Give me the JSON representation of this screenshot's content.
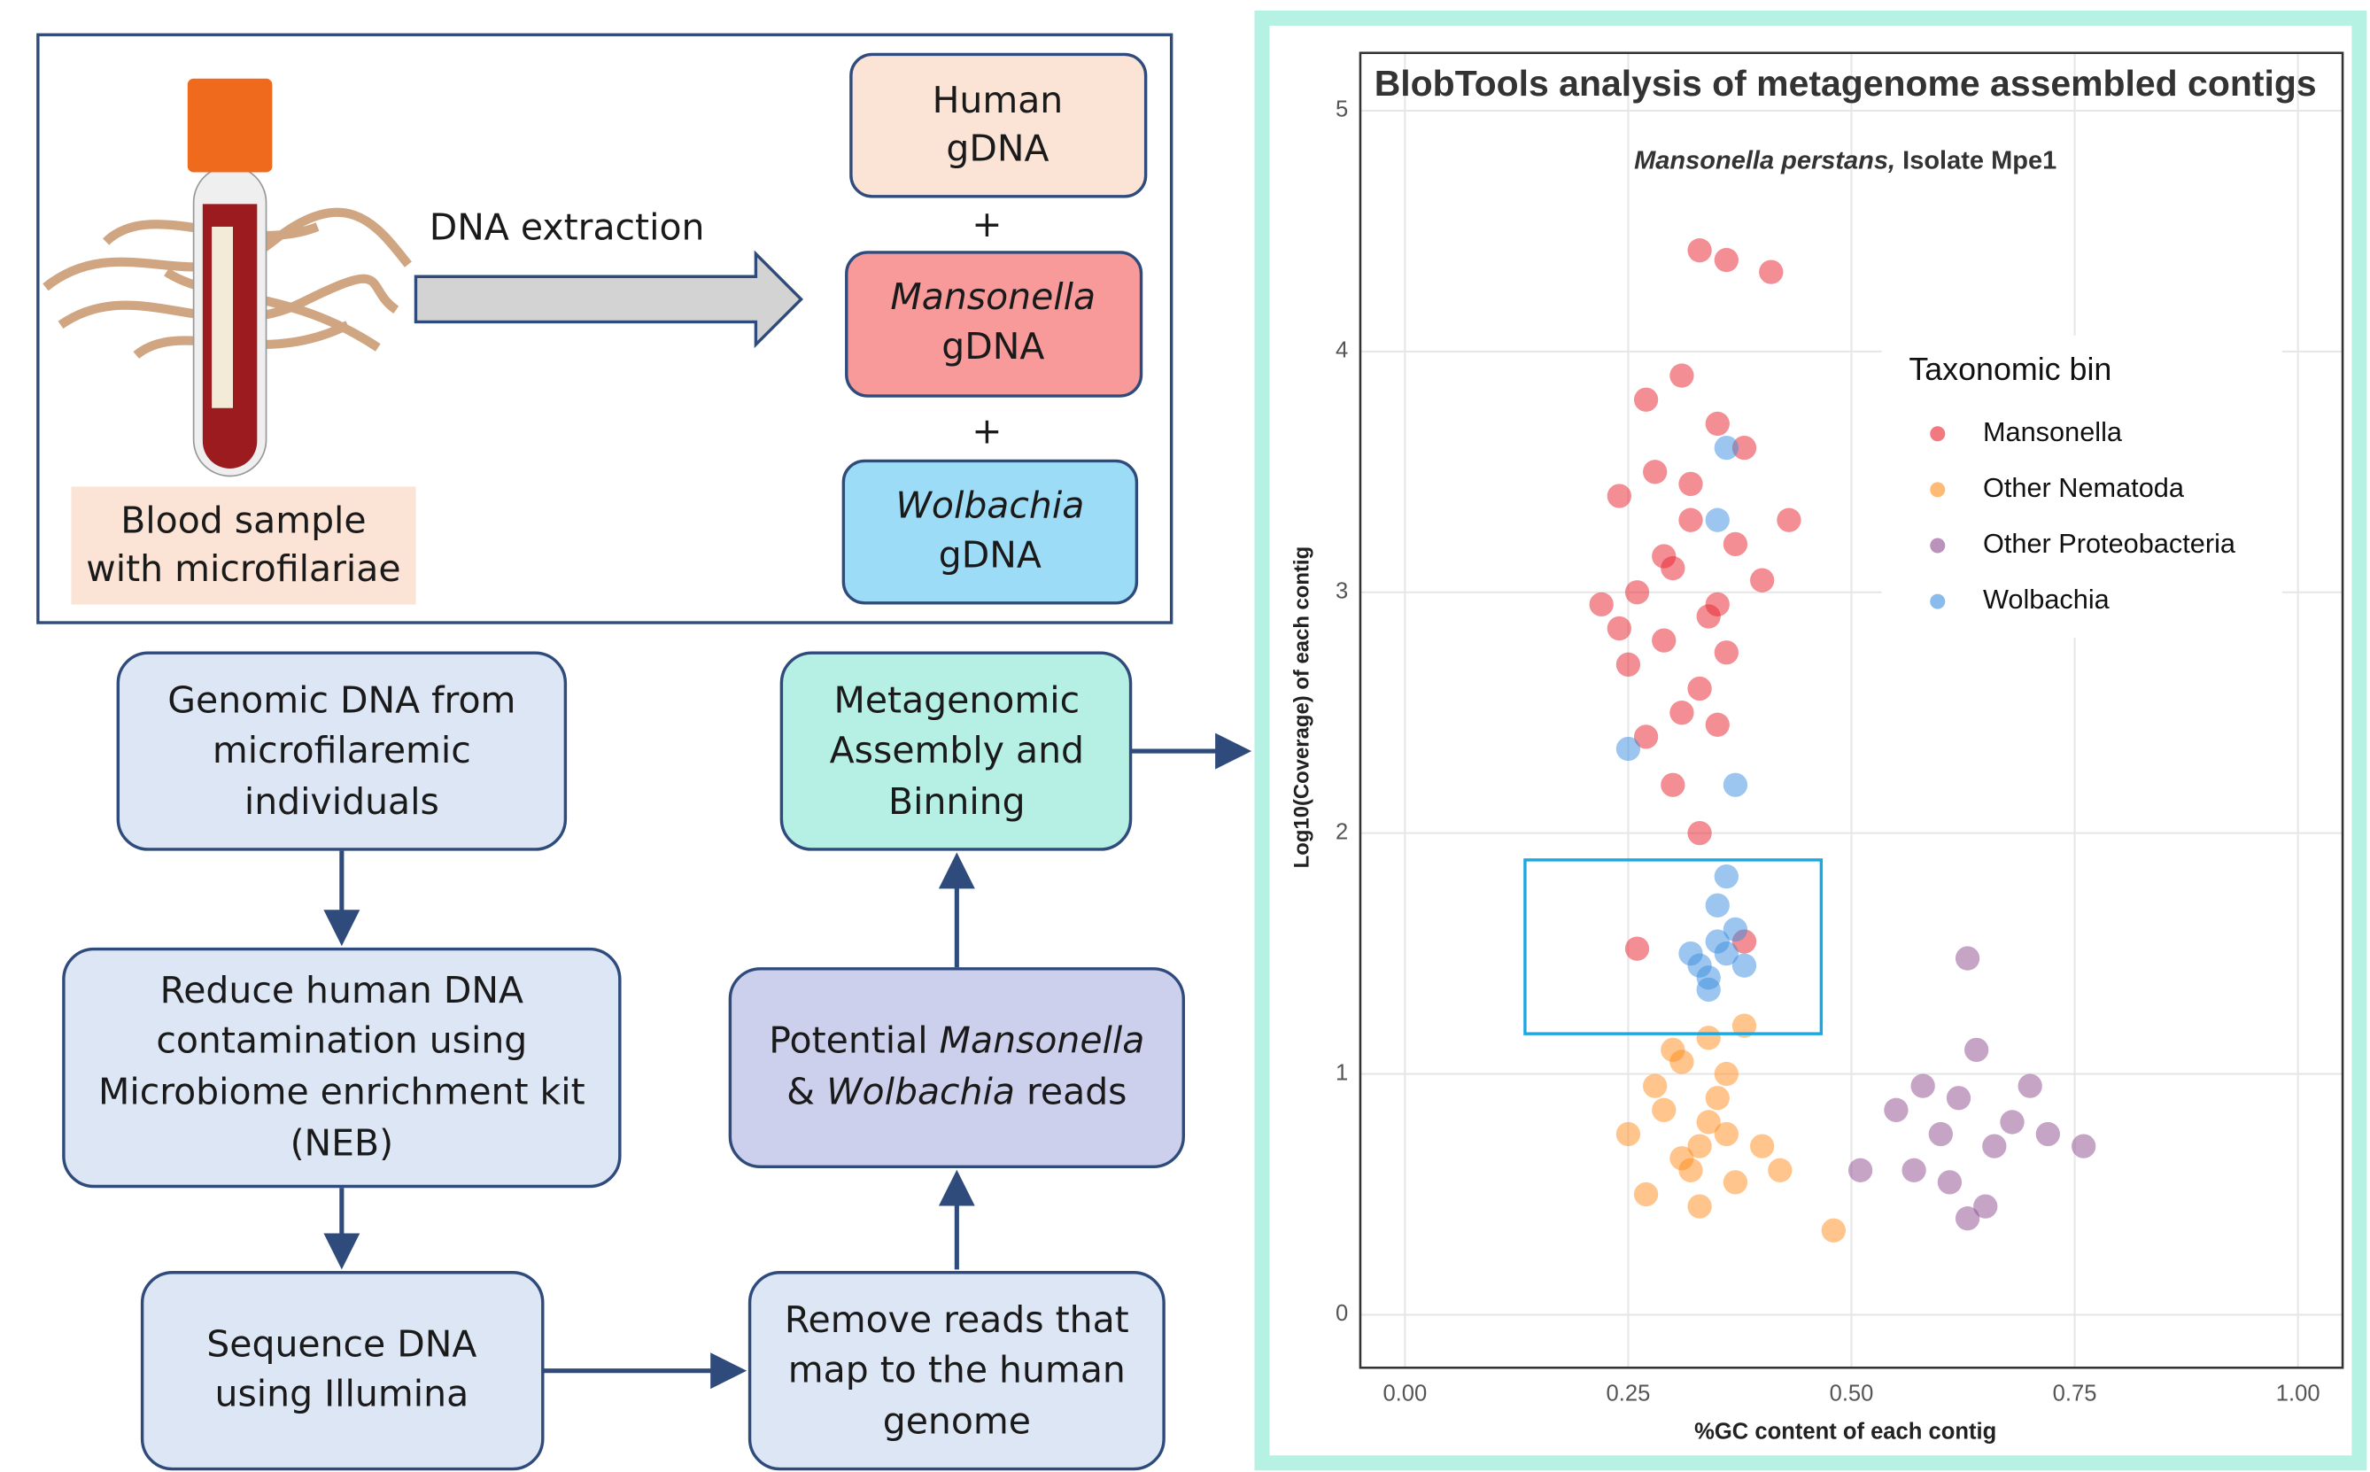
{
  "diagram": {
    "edge_label": "DNA extraction",
    "plus": [
      "+",
      "+"
    ],
    "sample_label": [
      "Blood sample",
      "with microfilariae"
    ],
    "nodes": [
      {
        "lines": [
          [
            "Human"
          ],
          [
            "gDNA"
          ]
        ]
      },
      {
        "lines": [
          [
            "Mansonella"
          ],
          [
            "gDNA"
          ]
        ]
      },
      {
        "lines": [
          [
            "Wolbachia"
          ],
          [
            "gDNA"
          ]
        ]
      },
      {
        "lines": [
          [
            "Genomic DNA from"
          ],
          [
            "microfilaremic"
          ],
          [
            "individuals"
          ]
        ]
      },
      {
        "lines": [
          [
            "Reduce human DNA"
          ],
          [
            "contamination using"
          ],
          [
            "Microbiome enrichment kit"
          ],
          [
            "(NEB)"
          ]
        ]
      },
      {
        "lines": [
          [
            "Sequence DNA"
          ],
          [
            "using Illumina"
          ]
        ]
      },
      {
        "lines": [
          [
            "Remove reads that"
          ],
          [
            "map to the human"
          ],
          [
            "genome"
          ]
        ]
      },
      {
        "lines": [
          [
            "Potential ",
            "Mansonella"
          ],
          [
            "& ",
            "Wolbachia",
            " reads"
          ]
        ]
      },
      {
        "lines": [
          [
            "Metagenomic"
          ],
          [
            "Assembly and"
          ],
          [
            "Binning"
          ]
        ]
      }
    ]
  },
  "chart_data": {
    "type": "scatter",
    "title": "BlobTools analysis of metagenome assembled contigs",
    "subtitle": [
      "Mansonella perstans,",
      " Isolate Mpe1"
    ],
    "x_label": "%GC content of each contig",
    "y_label": "Log10(Coverage) of each contig",
    "legend_title": "Taxonomic bin",
    "legend_position": "right",
    "grid": true,
    "xlim": [
      -0.05,
      1.05
    ],
    "ylim": [
      -0.22,
      5.24
    ],
    "xticks": [
      {
        "value": 0,
        "label": "0.00"
      },
      {
        "value": 0.25,
        "label": "0.25"
      },
      {
        "value": 0.5,
        "label": "0.50"
      },
      {
        "value": 0.75,
        "label": "0.75"
      },
      {
        "value": 1,
        "label": "1.00"
      }
    ],
    "yticks": [
      0,
      1,
      2,
      3,
      4,
      5
    ],
    "series": [
      {
        "name": "Mansonella",
        "color": "#e8202a",
        "x": [
          0.33,
          0.36,
          0.41,
          0.27,
          0.31,
          0.35,
          0.24,
          0.28,
          0.32,
          0.38,
          0.22,
          0.26,
          0.3,
          0.34,
          0.37,
          0.4,
          0.25,
          0.29,
          0.33,
          0.36,
          0.27,
          0.31,
          0.35,
          0.3,
          0.33,
          0.26,
          0.38,
          0.43,
          0.32,
          0.24,
          0.29,
          0.35
        ],
        "values": [
          4.42,
          4.38,
          4.33,
          3.8,
          3.9,
          3.7,
          3.4,
          3.5,
          3.3,
          3.6,
          2.95,
          3.0,
          3.1,
          2.9,
          3.2,
          3.05,
          2.7,
          2.8,
          2.6,
          2.75,
          2.4,
          2.5,
          2.45,
          2.2,
          2.0,
          1.52,
          1.55,
          3.3,
          3.45,
          2.85,
          3.15,
          2.95
        ]
      },
      {
        "name": "Other Nematoda",
        "color": "#ff8c1a",
        "x": [
          0.25,
          0.28,
          0.3,
          0.32,
          0.34,
          0.36,
          0.38,
          0.4,
          0.27,
          0.31,
          0.33,
          0.35,
          0.37,
          0.29,
          0.33,
          0.36,
          0.42,
          0.48,
          0.31,
          0.34
        ],
        "values": [
          0.75,
          0.95,
          1.1,
          0.6,
          0.8,
          1.0,
          1.2,
          0.7,
          0.5,
          0.65,
          0.45,
          0.9,
          0.55,
          0.85,
          0.7,
          0.75,
          0.6,
          0.35,
          1.05,
          1.15
        ]
      },
      {
        "name": "Other Proteobacteria",
        "color": "#8e4a8e",
        "x": [
          0.55,
          0.58,
          0.6,
          0.62,
          0.64,
          0.66,
          0.68,
          0.7,
          0.57,
          0.61,
          0.63,
          0.65,
          0.72,
          0.76,
          0.63,
          0.51
        ],
        "values": [
          0.85,
          0.95,
          0.75,
          0.9,
          1.1,
          0.7,
          0.8,
          0.95,
          0.6,
          0.55,
          1.48,
          0.45,
          0.75,
          0.7,
          0.4,
          0.6
        ]
      },
      {
        "name": "Wolbachia",
        "color": "#3a8de0",
        "x": [
          0.33,
          0.35,
          0.36,
          0.37,
          0.34,
          0.32,
          0.38,
          0.35,
          0.36,
          0.37,
          0.25,
          0.36,
          0.35,
          0.34
        ],
        "values": [
          1.45,
          1.55,
          1.5,
          1.6,
          1.4,
          1.5,
          1.45,
          1.7,
          1.82,
          2.2,
          2.35,
          3.6,
          3.3,
          1.35
        ]
      }
    ]
  }
}
